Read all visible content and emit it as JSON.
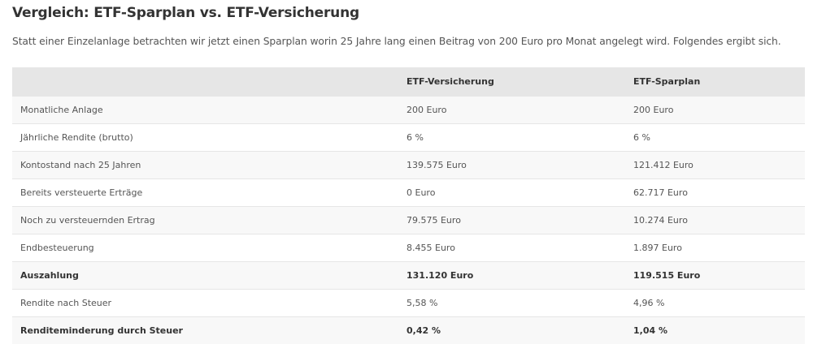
{
  "title": "Vergleich: ETF-Sparplan vs. ETF-Versicherung",
  "intro": "Statt einer Einzelanlage betrachten wir jetzt einen Sparplan worin 25 Jahre lang einen Beitrag von 200 Euro pro Monat angelegt wird. Folgendes ergibt sich.",
  "table": {
    "headers": [
      "",
      "ETF-Versicherung",
      "ETF-Sparplan"
    ],
    "rows": [
      {
        "label": "Monatliche Anlage",
        "a": "200 Euro",
        "b": "200 Euro",
        "bold": false
      },
      {
        "label": "Jährliche Rendite (brutto)",
        "a": "6 %",
        "b": "6 %",
        "bold": false
      },
      {
        "label": "Kontostand nach 25 Jahren",
        "a": "139.575 Euro",
        "b": "121.412 Euro",
        "bold": false
      },
      {
        "label": "Bereits versteuerte Erträge",
        "a": "0 Euro",
        "b": "62.717 Euro",
        "bold": false
      },
      {
        "label": "Noch zu versteuernden Ertrag",
        "a": "79.575 Euro",
        "b": "10.274 Euro",
        "bold": false
      },
      {
        "label": "Endbesteuerung",
        "a": "8.455 Euro",
        "b": "1.897 Euro",
        "bold": false
      },
      {
        "label": "Auszahlung",
        "a": "131.120 Euro",
        "b": "119.515 Euro",
        "bold": true
      },
      {
        "label": "Rendite nach Steuer",
        "a": "5,58 %",
        "b": "4,96 %",
        "bold": false
      },
      {
        "label": "Renditeminderung durch Steuer",
        "a": "0,42 %",
        "b": "1,04 %",
        "bold": true
      }
    ]
  }
}
